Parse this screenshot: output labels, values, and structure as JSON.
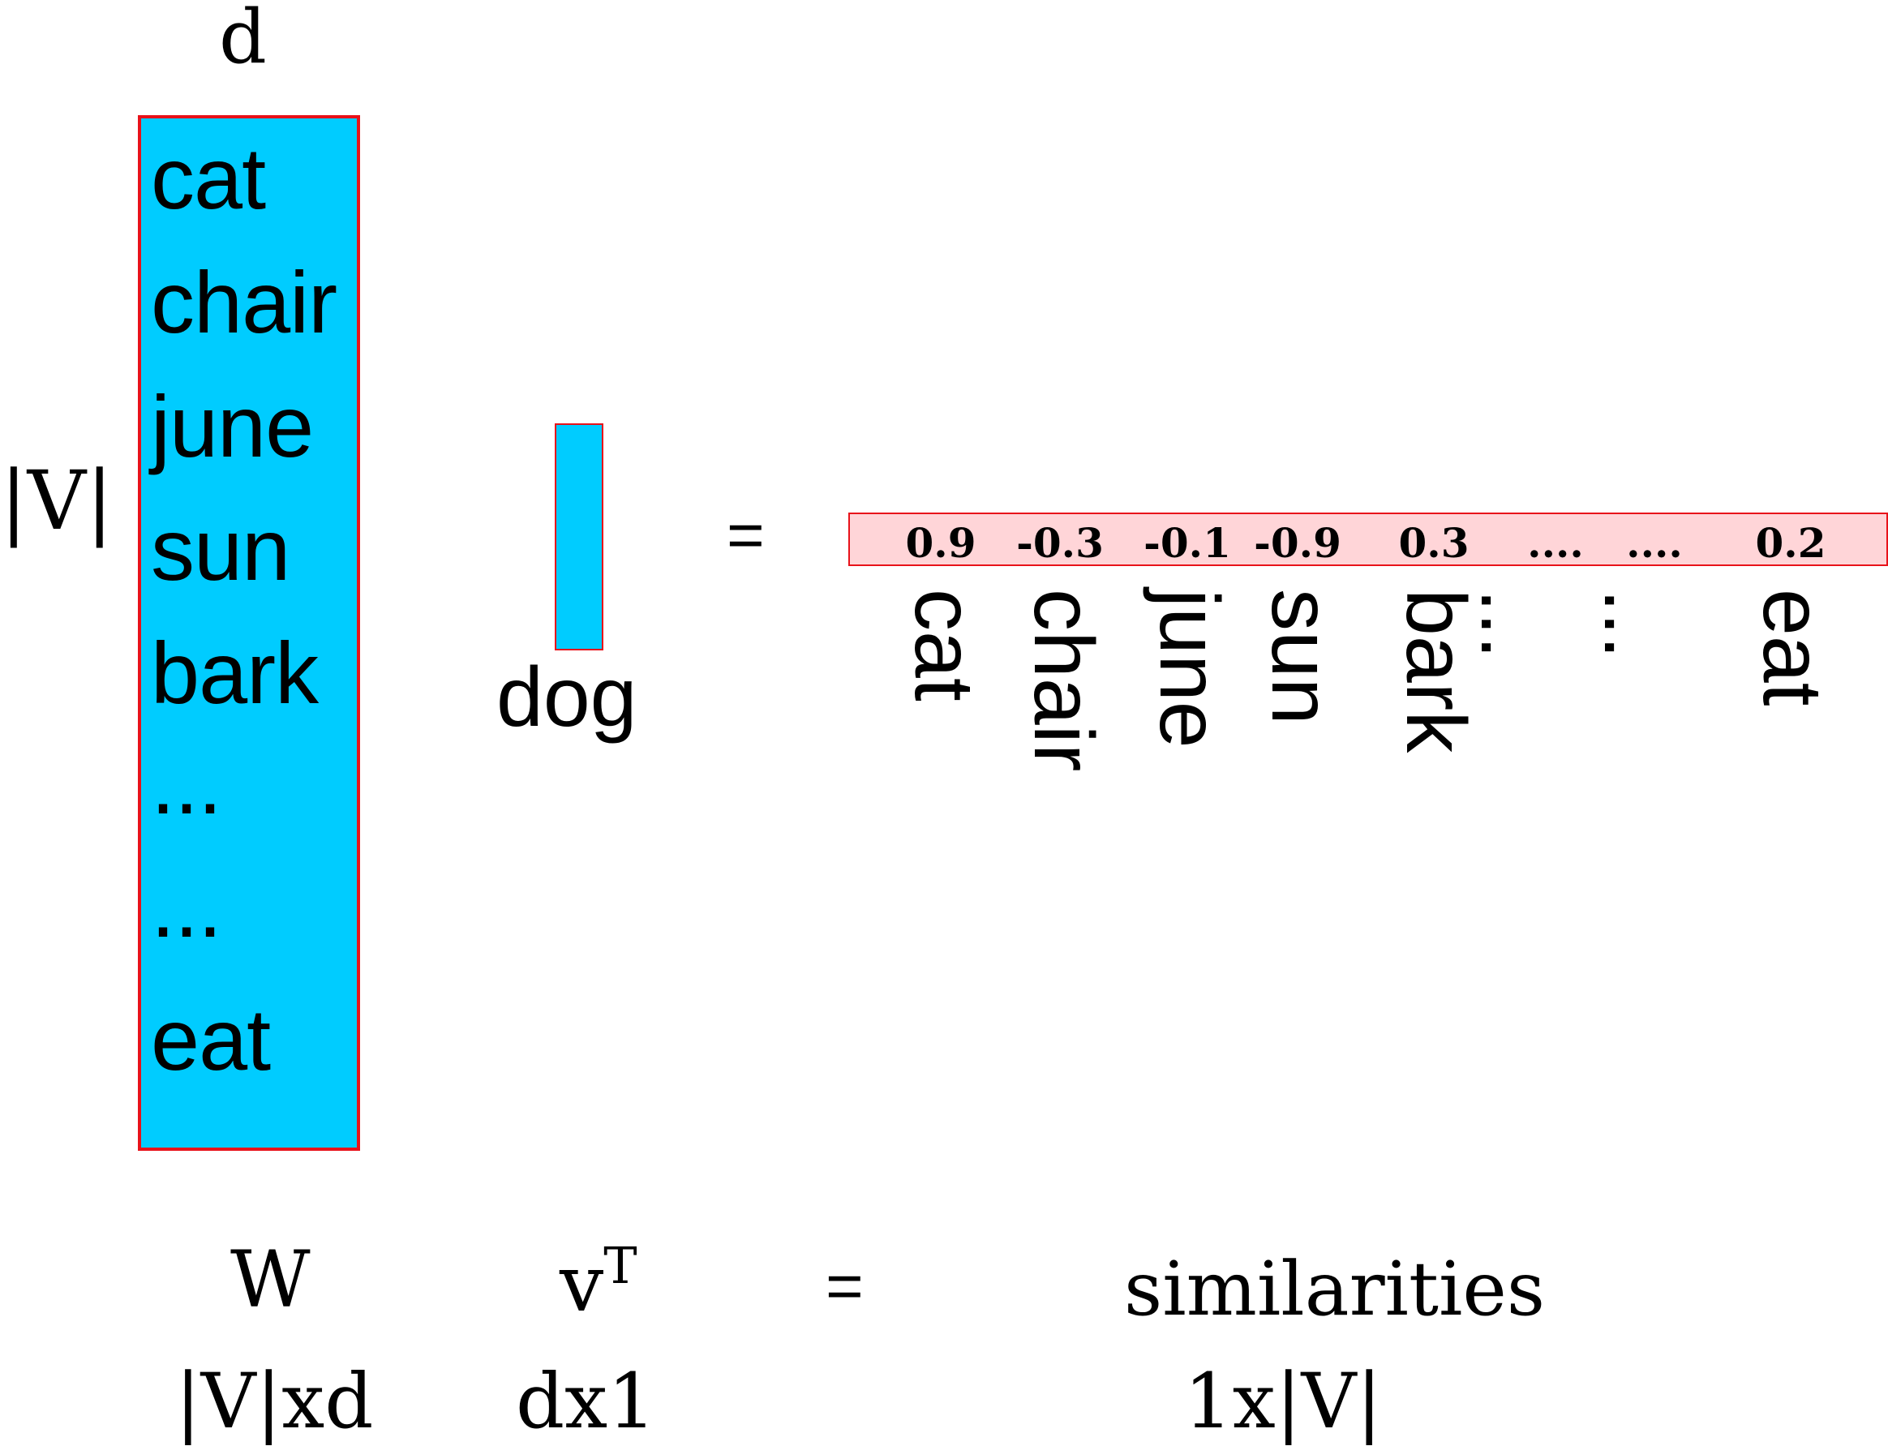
{
  "matrix": {
    "dim_label": "d",
    "rows_label": "|V|",
    "words": [
      "cat",
      "chair",
      "june",
      "sun",
      "bark",
      "...",
      "...",
      "eat"
    ]
  },
  "vector": {
    "label": "dog"
  },
  "equals": "=",
  "similarity": {
    "values": [
      "0.9",
      "-0.3",
      "-0.1",
      "-0.9",
      "0.3",
      "....",
      "....",
      "0.2"
    ],
    "words": [
      "cat",
      "chair",
      "june",
      "sun",
      "bark",
      "...",
      "...",
      "eat"
    ]
  },
  "caption": {
    "w_symbol": "W",
    "v_symbol": "v",
    "v_superscript": "T",
    "equals": "=",
    "result_name": "similarities",
    "w_dims": "|V|xd",
    "v_dims": "dx1",
    "result_dims": "1x|V|"
  },
  "colors": {
    "matrix_fill": "#00ccff",
    "border": "#e8121a",
    "similarity_fill": "#ffd5d8"
  }
}
